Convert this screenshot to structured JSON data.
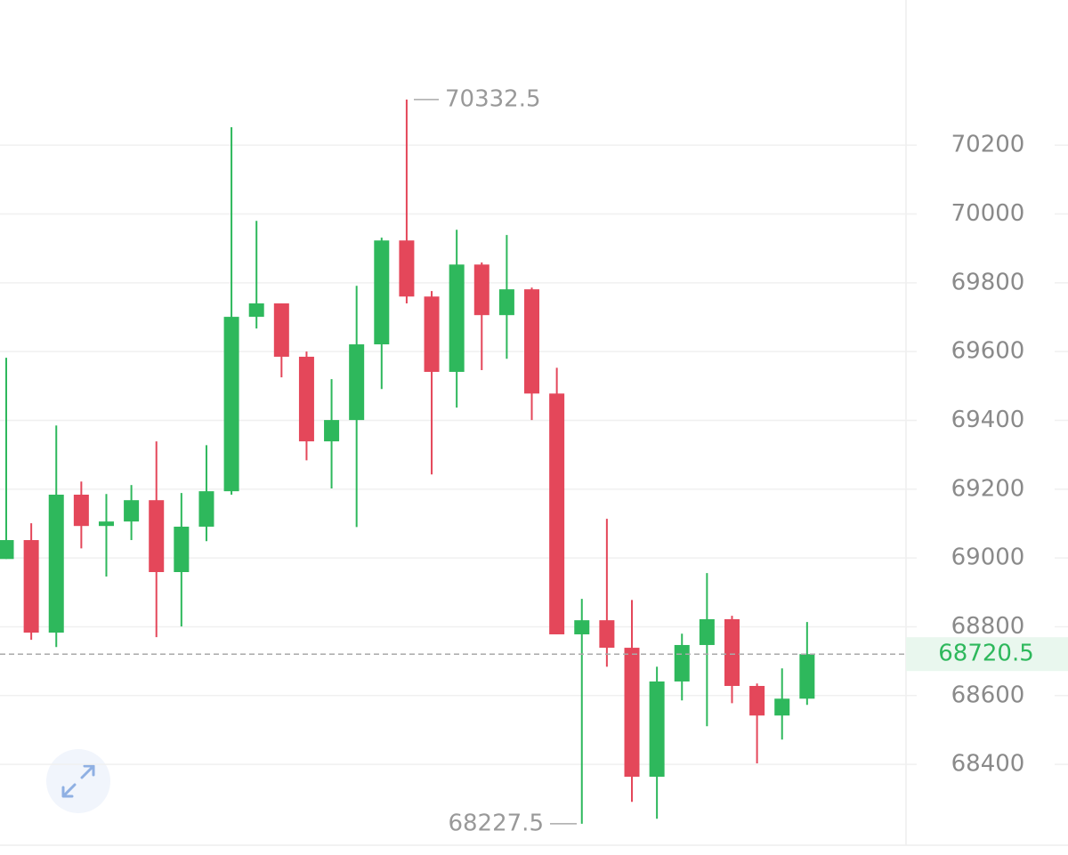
{
  "chart_data": {
    "type": "candlestick",
    "ylim": [
      68165,
      70622
    ],
    "yticks": [
      68400,
      68600,
      68800,
      69000,
      69200,
      69400,
      69600,
      69800,
      70000,
      70200
    ],
    "grid": true,
    "up_color": "#2eb85c",
    "down_color": "#e4475a",
    "open": [
      68997,
      69052,
      68783,
      69184,
      69093,
      69106,
      69168,
      68959,
      69091,
      69194,
      69701,
      69740,
      69585,
      69339,
      69401,
      69621,
      69923,
      69760,
      69541,
      69853,
      69706,
      69781,
      69478,
      68778,
      68819,
      68739,
      68364,
      68641,
      68747,
      68822,
      68628,
      68542,
      68591
    ],
    "high": [
      69582,
      69101,
      69385,
      69222,
      69186,
      69212,
      69339,
      69189,
      69328,
      70252,
      69980,
      69740,
      69600,
      69520,
      69791,
      69931,
      70332.5,
      69776,
      69954,
      69859,
      69939,
      69786,
      69553,
      68881,
      69114,
      68878,
      68684,
      68780,
      68956,
      68832,
      68635,
      68679,
      68814
    ],
    "low": [
      68997,
      68762,
      68741,
      69028,
      68946,
      69052,
      68770,
      68801,
      69049,
      69184,
      69667,
      69525,
      69284,
      69202,
      69090,
      69491,
      69740,
      69243,
      69437,
      69546,
      69579,
      69401,
      68778,
      68227.5,
      68684,
      68291,
      68242,
      68586,
      68511,
      68578,
      68403,
      68472,
      68573
    ],
    "close": [
      69052,
      68783,
      69184,
      69093,
      69106,
      69168,
      68959,
      69091,
      69194,
      69701,
      69740,
      69585,
      69339,
      69401,
      69621,
      69923,
      69760,
      69541,
      69853,
      69706,
      69781,
      69478,
      68778,
      68819,
      68739,
      68364,
      68641,
      68747,
      68822,
      68628,
      68542,
      68591,
      68720.5
    ],
    "high_marker": 70332.5,
    "low_marker": 68227.5,
    "last_price": 68720.5
  }
}
